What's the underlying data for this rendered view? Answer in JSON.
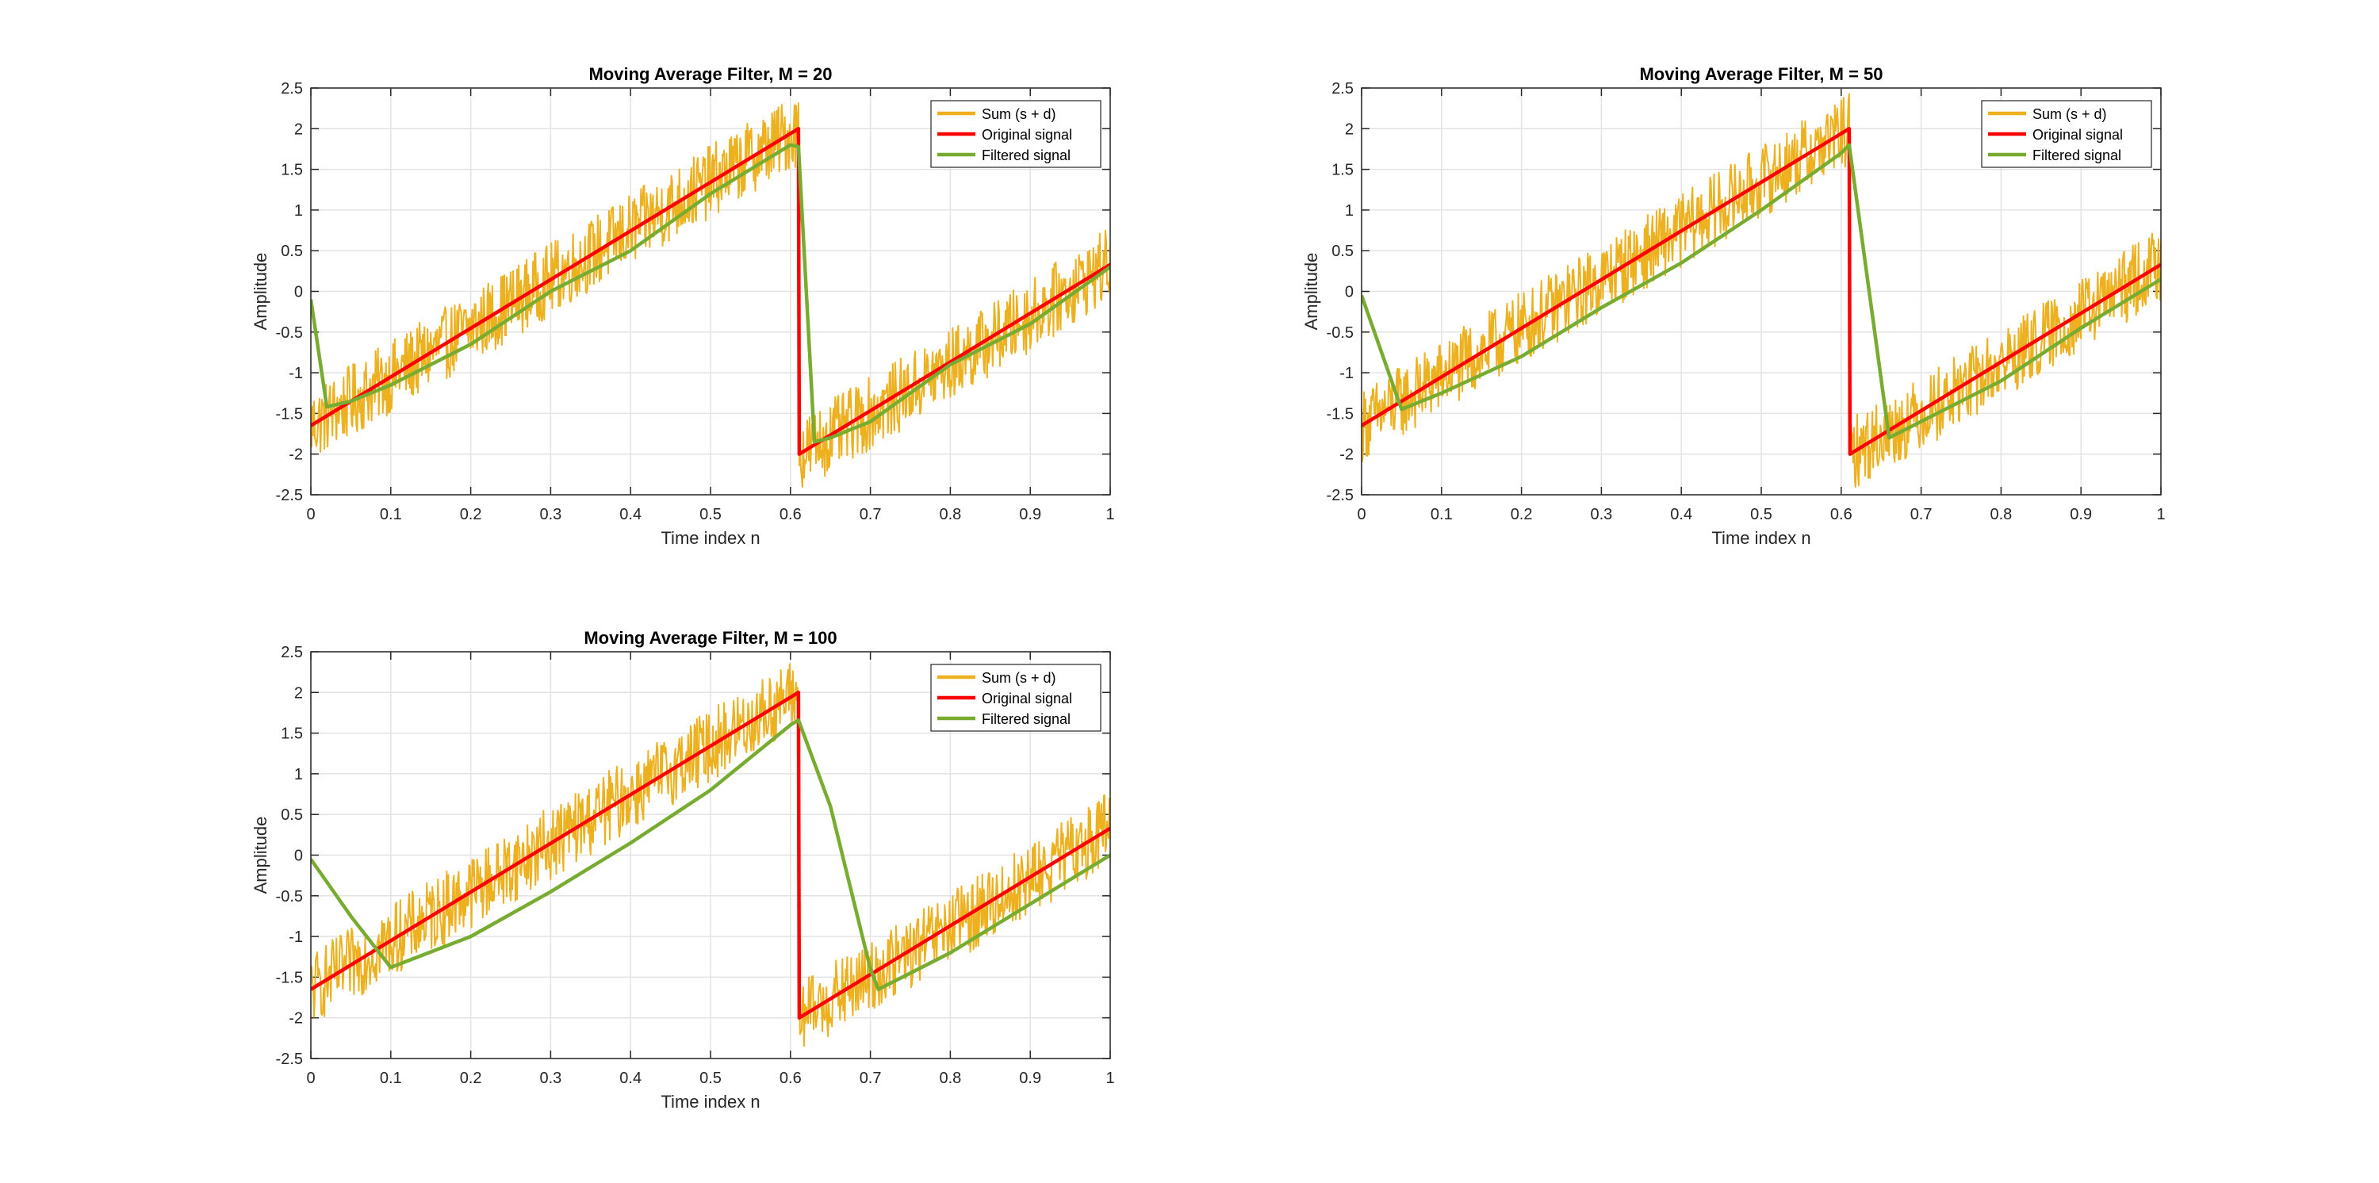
{
  "chart_data": [
    {
      "type": "line",
      "title": "Moving Average Filter, M = 20",
      "xlabel": "Time index n",
      "ylabel": "Amplitude",
      "xlim": [
        0,
        1
      ],
      "ylim": [
        -2.5,
        2.5
      ],
      "xticks": [
        "0",
        "0.1",
        "0.2",
        "0.3",
        "0.4",
        "0.5",
        "0.6",
        "0.7",
        "0.8",
        "0.9",
        "1"
      ],
      "yticks": [
        "2.5",
        "2",
        "1.5",
        "1",
        "0.5",
        "0",
        "-0.5",
        "-1",
        "-1.5",
        "-2",
        "-2.5"
      ],
      "grid": true,
      "legend_position": "top-right",
      "series": [
        {
          "name": "Sum (s + d)",
          "color": "#EDB120",
          "x": [
            0,
            0.1,
            0.2,
            0.3,
            0.4,
            0.5,
            0.61,
            0.611,
            0.7,
            0.8,
            0.9,
            1
          ],
          "y": [
            -1.65,
            -1.05,
            -0.45,
            0.15,
            0.75,
            1.35,
            2.0,
            -2.0,
            -1.5,
            -0.9,
            -0.3,
            0.35
          ],
          "noise_amplitude": 0.45
        },
        {
          "name": "Original signal",
          "color": "#FF0000",
          "x": [
            0,
            0.61,
            0.611,
            1
          ],
          "y": [
            -1.65,
            2.0,
            -2.0,
            0.33
          ]
        },
        {
          "name": "Filtered signal",
          "color": "#77AC30",
          "x": [
            0,
            0.02,
            0.05,
            0.1,
            0.2,
            0.3,
            0.4,
            0.5,
            0.6,
            0.61,
            0.63,
            0.65,
            0.7,
            0.8,
            0.9,
            1
          ],
          "y": [
            -0.1,
            -1.42,
            -1.35,
            -1.15,
            -0.65,
            0.0,
            0.5,
            1.2,
            1.8,
            1.78,
            -1.85,
            -1.8,
            -1.6,
            -0.9,
            -0.4,
            0.3
          ]
        }
      ]
    },
    {
      "type": "line",
      "title": "Moving Average Filter, M = 50",
      "xlabel": "Time index n",
      "ylabel": "Amplitude",
      "xlim": [
        0,
        1
      ],
      "ylim": [
        -2.5,
        2.5
      ],
      "xticks": [
        "0",
        "0.1",
        "0.2",
        "0.3",
        "0.4",
        "0.5",
        "0.6",
        "0.7",
        "0.8",
        "0.9",
        "1"
      ],
      "yticks": [
        "2.5",
        "2",
        "1.5",
        "1",
        "0.5",
        "0",
        "-0.5",
        "-1",
        "-1.5",
        "-2",
        "-2.5"
      ],
      "grid": true,
      "legend_position": "top-right",
      "series": [
        {
          "name": "Sum (s + d)",
          "color": "#EDB120",
          "x": [
            0,
            0.1,
            0.2,
            0.3,
            0.4,
            0.5,
            0.61,
            0.611,
            0.7,
            0.8,
            0.9,
            1
          ],
          "y": [
            -1.65,
            -1.05,
            -0.45,
            0.15,
            0.75,
            1.35,
            2.0,
            -2.0,
            -1.5,
            -0.9,
            -0.3,
            0.35
          ],
          "noise_amplitude": 0.45
        },
        {
          "name": "Original signal",
          "color": "#FF0000",
          "x": [
            0,
            0.61,
            0.611,
            1
          ],
          "y": [
            -1.65,
            2.0,
            -2.0,
            0.33
          ]
        },
        {
          "name": "Filtered signal",
          "color": "#77AC30",
          "x": [
            0,
            0.05,
            0.1,
            0.2,
            0.3,
            0.4,
            0.5,
            0.6,
            0.61,
            0.66,
            0.7,
            0.8,
            0.9,
            1
          ],
          "y": [
            -0.05,
            -1.45,
            -1.25,
            -0.8,
            -0.2,
            0.35,
            1.0,
            1.7,
            1.8,
            -1.8,
            -1.6,
            -1.1,
            -0.45,
            0.15
          ]
        }
      ]
    },
    {
      "type": "line",
      "title": "Moving Average Filter, M = 100",
      "xlabel": "Time index n",
      "ylabel": "Amplitude",
      "xlim": [
        0,
        1
      ],
      "ylim": [
        -2.5,
        2.5
      ],
      "xticks": [
        "0",
        "0.1",
        "0.2",
        "0.3",
        "0.4",
        "0.5",
        "0.6",
        "0.7",
        "0.8",
        "0.9",
        "1"
      ],
      "yticks": [
        "2.5",
        "2",
        "1.5",
        "1",
        "0.5",
        "0",
        "-0.5",
        "-1",
        "-1.5",
        "-2",
        "-2.5"
      ],
      "grid": true,
      "legend_position": "top-right",
      "series": [
        {
          "name": "Sum (s + d)",
          "color": "#EDB120",
          "x": [
            0,
            0.1,
            0.2,
            0.3,
            0.4,
            0.5,
            0.61,
            0.611,
            0.7,
            0.8,
            0.9,
            1
          ],
          "y": [
            -1.65,
            -1.05,
            -0.45,
            0.15,
            0.75,
            1.35,
            2.0,
            -2.0,
            -1.5,
            -0.9,
            -0.3,
            0.35
          ],
          "noise_amplitude": 0.45
        },
        {
          "name": "Original signal",
          "color": "#FF0000",
          "x": [
            0,
            0.61,
            0.611,
            1
          ],
          "y": [
            -1.65,
            2.0,
            -2.0,
            0.33
          ]
        },
        {
          "name": "Filtered signal",
          "color": "#77AC30",
          "x": [
            0,
            0.05,
            0.1,
            0.2,
            0.3,
            0.4,
            0.5,
            0.6,
            0.61,
            0.65,
            0.7,
            0.71,
            0.8,
            0.9,
            1
          ],
          "y": [
            -0.05,
            -0.75,
            -1.38,
            -1.0,
            -0.45,
            0.15,
            0.8,
            1.6,
            1.66,
            0.6,
            -1.4,
            -1.65,
            -1.2,
            -0.6,
            0.0
          ]
        }
      ]
    }
  ]
}
